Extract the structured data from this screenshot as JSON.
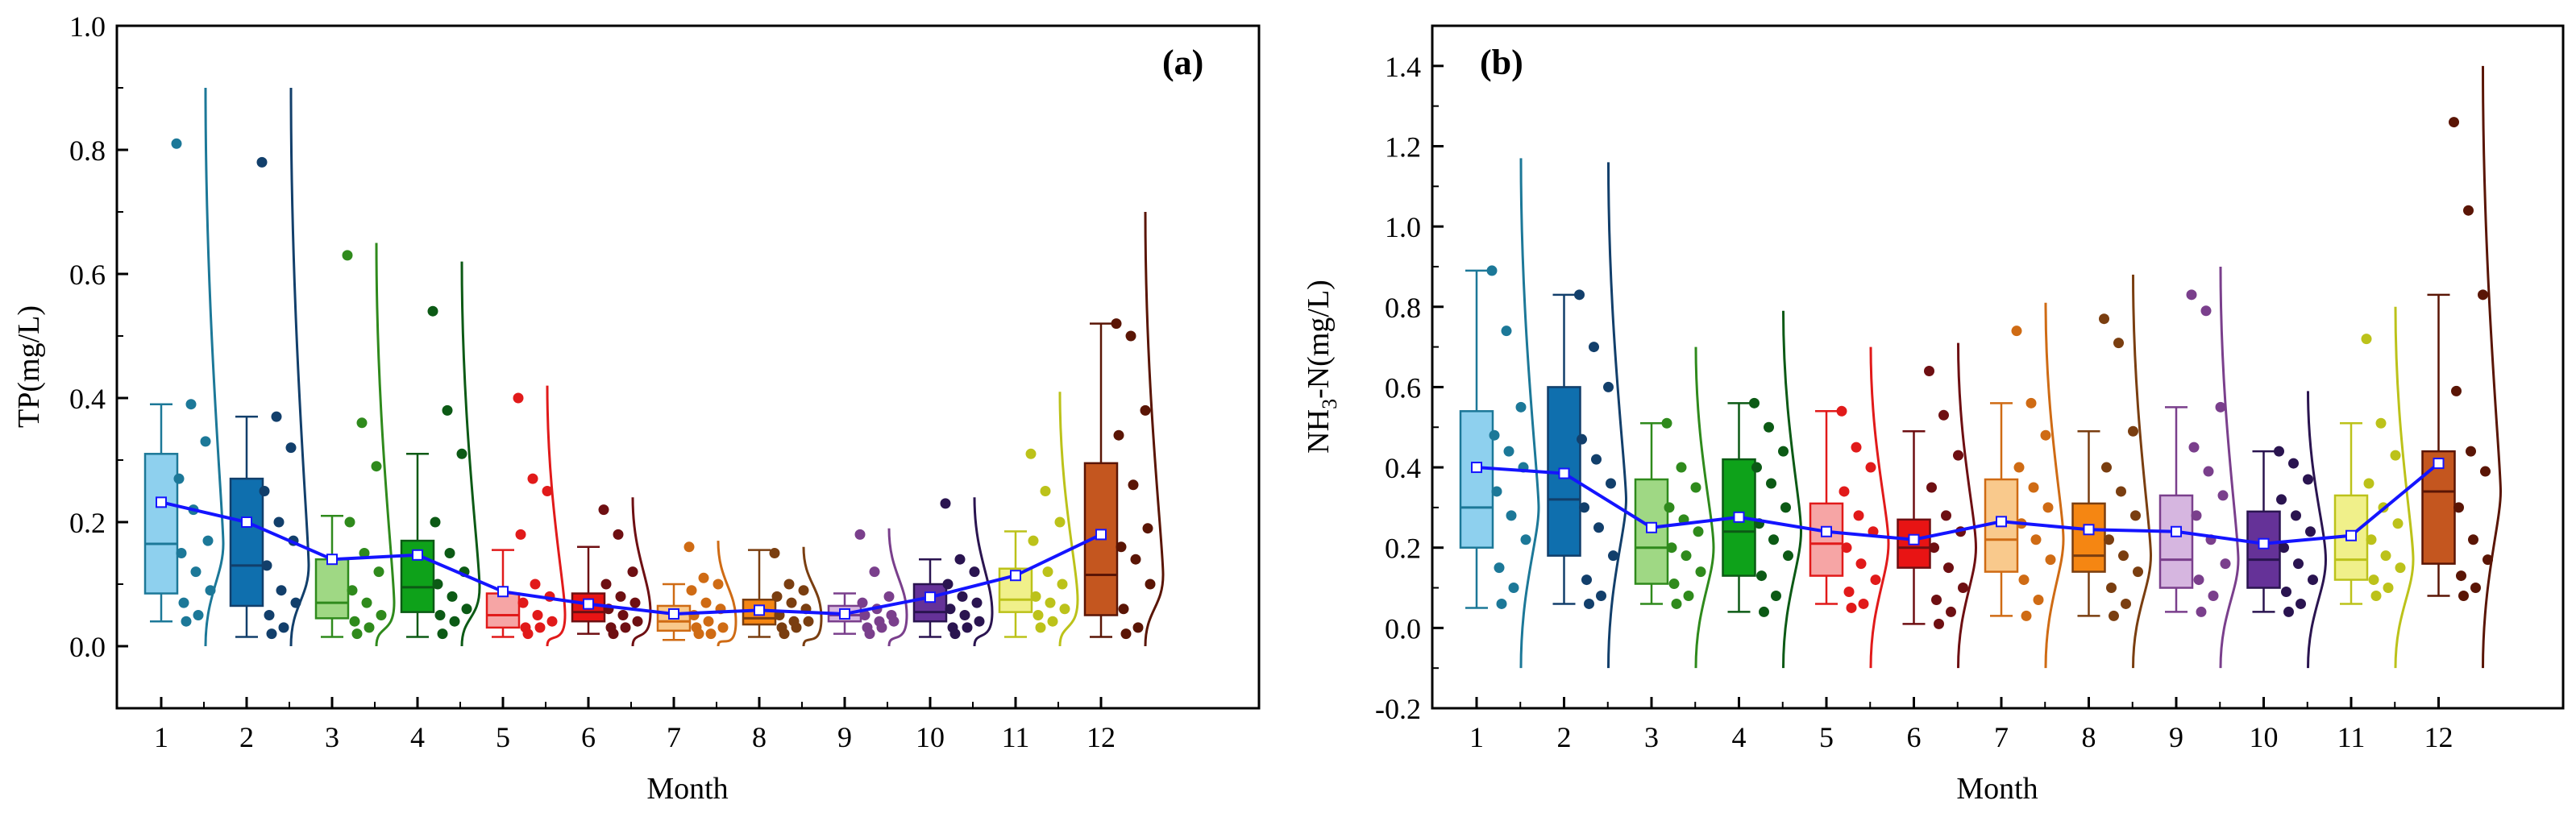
{
  "months": [
    "1",
    "2",
    "3",
    "4",
    "5",
    "6",
    "7",
    "8",
    "9",
    "10",
    "11",
    "12"
  ],
  "month_colors_light": [
    "#8ed0ee",
    "#0f6fae",
    "#9fd884",
    "#0ea21a",
    "#f6a5a5",
    "#e81414",
    "#f9c98c",
    "#f58612",
    "#d6b6e0",
    "#653298",
    "#f0f08a",
    "#c4561f"
  ],
  "month_colors_dark": [
    "#1c7898",
    "#123f6b",
    "#2f8a1c",
    "#0c5a15",
    "#e11a1a",
    "#6e0f12",
    "#cf6b14",
    "#7a3e10",
    "#7a3f8c",
    "#2a1450",
    "#bcc21a",
    "#5a1505"
  ],
  "mean_line_color": "#1414ff",
  "chart_data": [
    {
      "type": "box",
      "panel_label": "(a)",
      "xlabel": "Month",
      "ylabel": "TP(mg/L)",
      "ylim": [
        -0.1,
        1.0
      ],
      "yticks": [
        0.0,
        0.2,
        0.4,
        0.6,
        0.8,
        1.0
      ],
      "ytick_labels": [
        "0.0",
        "0.2",
        "0.4",
        "0.6",
        "0.8",
        "1.0"
      ],
      "categories": [
        "1",
        "2",
        "3",
        "4",
        "5",
        "6",
        "7",
        "8",
        "9",
        "10",
        "11",
        "12"
      ],
      "box": {
        "q1": [
          0.085,
          0.065,
          0.045,
          0.055,
          0.03,
          0.04,
          0.025,
          0.035,
          0.04,
          0.04,
          0.055,
          0.05
        ],
        "median": [
          0.165,
          0.13,
          0.07,
          0.095,
          0.05,
          0.055,
          0.04,
          0.045,
          0.05,
          0.055,
          0.075,
          0.115
        ],
        "q3": [
          0.31,
          0.27,
          0.14,
          0.17,
          0.085,
          0.085,
          0.065,
          0.075,
          0.065,
          0.1,
          0.125,
          0.295
        ],
        "whisker_low": [
          0.04,
          0.015,
          0.015,
          0.015,
          0.015,
          0.02,
          0.01,
          0.015,
          0.02,
          0.015,
          0.015,
          0.015
        ],
        "whisker_high": [
          0.39,
          0.37,
          0.21,
          0.31,
          0.155,
          0.16,
          0.1,
          0.155,
          0.085,
          0.14,
          0.185,
          0.52
        ]
      },
      "mean": [
        0.232,
        0.2,
        0.14,
        0.147,
        0.088,
        0.068,
        0.052,
        0.058,
        0.052,
        0.079,
        0.114,
        0.18
      ],
      "points": [
        [
          0.81,
          0.39,
          0.33,
          0.27,
          0.22,
          0.17,
          0.15,
          0.12,
          0.09,
          0.07,
          0.05,
          0.04
        ],
        [
          0.78,
          0.37,
          0.32,
          0.25,
          0.2,
          0.17,
          0.13,
          0.09,
          0.07,
          0.05,
          0.03,
          0.02
        ],
        [
          0.63,
          0.36,
          0.29,
          0.2,
          0.15,
          0.12,
          0.09,
          0.07,
          0.05,
          0.04,
          0.03,
          0.02
        ],
        [
          0.54,
          0.38,
          0.31,
          0.2,
          0.15,
          0.12,
          0.1,
          0.08,
          0.06,
          0.05,
          0.04,
          0.02
        ],
        [
          0.4,
          0.27,
          0.25,
          0.18,
          0.1,
          0.08,
          0.07,
          0.05,
          0.04,
          0.03,
          0.03,
          0.02
        ],
        [
          0.22,
          0.18,
          0.12,
          0.1,
          0.08,
          0.07,
          0.06,
          0.05,
          0.04,
          0.03,
          0.03,
          0.02
        ],
        [
          0.16,
          0.11,
          0.1,
          0.09,
          0.07,
          0.06,
          0.05,
          0.04,
          0.03,
          0.03,
          0.02,
          0.02
        ],
        [
          0.15,
          0.1,
          0.09,
          0.08,
          0.07,
          0.06,
          0.05,
          0.04,
          0.04,
          0.03,
          0.03,
          0.02
        ],
        [
          0.18,
          0.12,
          0.08,
          0.07,
          0.06,
          0.05,
          0.05,
          0.04,
          0.04,
          0.03,
          0.03,
          0.02
        ],
        [
          0.23,
          0.14,
          0.12,
          0.1,
          0.08,
          0.07,
          0.06,
          0.05,
          0.04,
          0.03,
          0.03,
          0.02
        ],
        [
          0.31,
          0.25,
          0.2,
          0.17,
          0.12,
          0.1,
          0.08,
          0.07,
          0.06,
          0.05,
          0.04,
          0.03
        ],
        [
          0.52,
          0.5,
          0.38,
          0.34,
          0.26,
          0.19,
          0.16,
          0.14,
          0.1,
          0.06,
          0.03,
          0.02
        ]
      ],
      "curve_top": [
        0.9,
        0.9,
        0.65,
        0.62,
        0.42,
        0.24,
        0.17,
        0.16,
        0.19,
        0.24,
        0.41,
        0.7
      ]
    },
    {
      "type": "box",
      "panel_label": "(b)",
      "xlabel": "Month",
      "ylabel_main": "NH",
      "ylabel_sub": "3",
      "ylabel_rest": "-N(mg/L)",
      "ylim": [
        -0.2,
        1.5
      ],
      "yticks": [
        -0.2,
        0.0,
        0.2,
        0.4,
        0.6,
        0.8,
        1.0,
        1.2,
        1.4
      ],
      "ytick_labels": [
        "-0.2",
        "0.0",
        "0.2",
        "0.4",
        "0.6",
        "0.8",
        "1.0",
        "1.2",
        "1.4"
      ],
      "categories": [
        "1",
        "2",
        "3",
        "4",
        "5",
        "6",
        "7",
        "8",
        "9",
        "10",
        "11",
        "12"
      ],
      "box": {
        "q1": [
          0.2,
          0.18,
          0.11,
          0.13,
          0.13,
          0.15,
          0.14,
          0.14,
          0.1,
          0.1,
          0.12,
          0.16
        ],
        "median": [
          0.3,
          0.32,
          0.2,
          0.24,
          0.21,
          0.2,
          0.22,
          0.18,
          0.17,
          0.17,
          0.17,
          0.34
        ],
        "q3": [
          0.54,
          0.6,
          0.37,
          0.42,
          0.31,
          0.27,
          0.37,
          0.31,
          0.33,
          0.29,
          0.33,
          0.44
        ],
        "whisker_low": [
          0.05,
          0.06,
          0.06,
          0.04,
          0.06,
          0.01,
          0.03,
          0.03,
          0.04,
          0.04,
          0.06,
          0.08
        ],
        "whisker_high": [
          0.89,
          0.83,
          0.51,
          0.56,
          0.54,
          0.49,
          0.56,
          0.49,
          0.55,
          0.44,
          0.51,
          0.83
        ]
      },
      "mean": [
        0.4,
        0.385,
        0.25,
        0.276,
        0.24,
        0.22,
        0.265,
        0.245,
        0.24,
        0.21,
        0.23,
        0.41
      ],
      "points": [
        [
          0.89,
          0.74,
          0.55,
          0.48,
          0.44,
          0.4,
          0.34,
          0.28,
          0.22,
          0.15,
          0.1,
          0.06
        ],
        [
          0.83,
          0.7,
          0.6,
          0.47,
          0.42,
          0.36,
          0.3,
          0.25,
          0.18,
          0.12,
          0.08,
          0.06
        ],
        [
          0.51,
          0.4,
          0.35,
          0.3,
          0.27,
          0.24,
          0.2,
          0.18,
          0.14,
          0.11,
          0.08,
          0.06
        ],
        [
          0.56,
          0.5,
          0.44,
          0.4,
          0.36,
          0.3,
          0.26,
          0.22,
          0.18,
          0.13,
          0.08,
          0.04
        ],
        [
          0.54,
          0.45,
          0.4,
          0.34,
          0.28,
          0.24,
          0.2,
          0.16,
          0.12,
          0.09,
          0.06,
          0.05
        ],
        [
          0.64,
          0.53,
          0.43,
          0.35,
          0.28,
          0.24,
          0.2,
          0.15,
          0.1,
          0.07,
          0.04,
          0.01
        ],
        [
          0.74,
          0.56,
          0.48,
          0.4,
          0.35,
          0.3,
          0.26,
          0.22,
          0.17,
          0.12,
          0.07,
          0.03
        ],
        [
          0.77,
          0.71,
          0.49,
          0.4,
          0.34,
          0.28,
          0.22,
          0.18,
          0.14,
          0.1,
          0.06,
          0.03
        ],
        [
          0.83,
          0.79,
          0.55,
          0.45,
          0.39,
          0.33,
          0.28,
          0.22,
          0.16,
          0.12,
          0.08,
          0.04
        ],
        [
          0.44,
          0.41,
          0.37,
          0.32,
          0.28,
          0.24,
          0.2,
          0.16,
          0.12,
          0.09,
          0.06,
          0.04
        ],
        [
          0.72,
          0.51,
          0.43,
          0.36,
          0.3,
          0.26,
          0.22,
          0.18,
          0.15,
          0.12,
          0.1,
          0.08
        ],
        [
          1.26,
          1.04,
          0.83,
          0.59,
          0.44,
          0.39,
          0.3,
          0.22,
          0.17,
          0.13,
          0.1,
          0.08
        ]
      ],
      "curve_top": [
        1.17,
        1.16,
        0.7,
        0.79,
        0.7,
        0.71,
        0.81,
        0.88,
        0.9,
        0.59,
        0.8,
        1.4
      ]
    }
  ]
}
